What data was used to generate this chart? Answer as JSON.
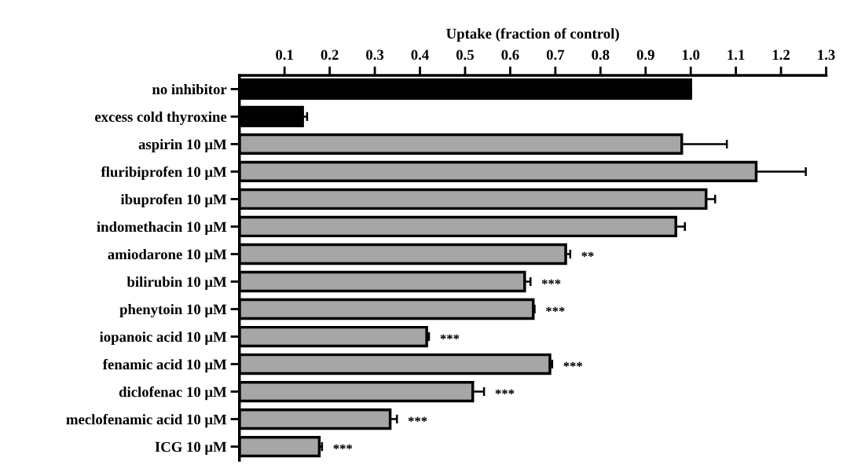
{
  "chart_data": {
    "type": "bar",
    "orientation": "horizontal",
    "xlabel": "Uptake (fraction of control)",
    "categories": [
      "no inhibitor",
      "excess cold thyroxine",
      "aspirin 10 μM",
      "fluribiprofen 10 μM",
      "ibuprofen 10 μM",
      "indomethacin 10 μM",
      "amiodarone 10 μM",
      "bilirubin 10 μM",
      "phenytoin 10 μM",
      "iopanoic acid 10 μM",
      "fenamic acid 10 μM",
      "diclofenac 10 μM",
      "meclofenamic acid 10 μM",
      "ICG 10 μM"
    ],
    "values": [
      1.0,
      0.14,
      0.98,
      1.145,
      1.034,
      0.967,
      0.723,
      0.632,
      0.651,
      0.415,
      0.688,
      0.517,
      0.334,
      0.177
    ],
    "errors": [
      null,
      0.01,
      0.1,
      0.11,
      0.02,
      0.02,
      0.01,
      0.013,
      0.003,
      0.005,
      0.005,
      0.025,
      0.015,
      0.006
    ],
    "colors": [
      "#000000",
      "#000000",
      "#a6a6a6",
      "#a6a6a6",
      "#a6a6a6",
      "#a6a6a6",
      "#a6a6a6",
      "#a6a6a6",
      "#a6a6a6",
      "#a6a6a6",
      "#a6a6a6",
      "#a6a6a6",
      "#a6a6a6",
      "#a6a6a6"
    ],
    "xlim": [
      0,
      1.3
    ],
    "xticks": [
      0.1,
      0.2,
      0.3,
      0.4,
      0.5,
      0.6,
      0.7,
      0.8,
      0.9,
      {
        "value": 1.0,
        "label": "1.0"
      },
      1.1,
      1.2,
      1.3
    ],
    "value_labels": [
      null,
      null,
      null,
      null,
      null,
      null,
      "**",
      "***",
      "***",
      "***",
      "***",
      "***",
      "***",
      "***"
    ],
    "grid": false,
    "legend": false
  }
}
